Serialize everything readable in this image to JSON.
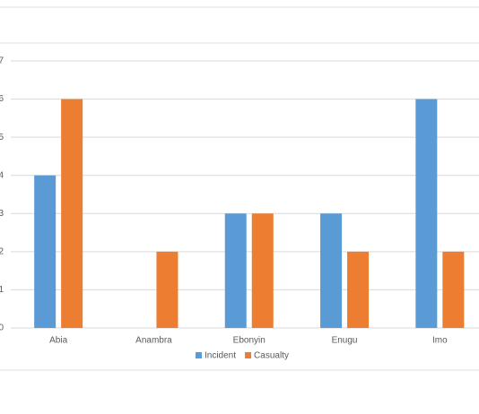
{
  "chart_data": {
    "type": "bar",
    "categories": [
      "Abia",
      "Anambra",
      "Ebonyin",
      "Enugu",
      "Imo"
    ],
    "series": [
      {
        "name": "Incident",
        "color": "#5b9bd5",
        "values": [
          4,
          0,
          3,
          3,
          6
        ]
      },
      {
        "name": "Casualty",
        "color": "#ed7d31",
        "values": [
          6,
          2,
          3,
          2,
          2
        ]
      }
    ],
    "ylim": [
      0,
      7
    ],
    "yticks": [
      0,
      1,
      2,
      3,
      4,
      5,
      6,
      7
    ],
    "grid": true,
    "legend": "bottom"
  }
}
